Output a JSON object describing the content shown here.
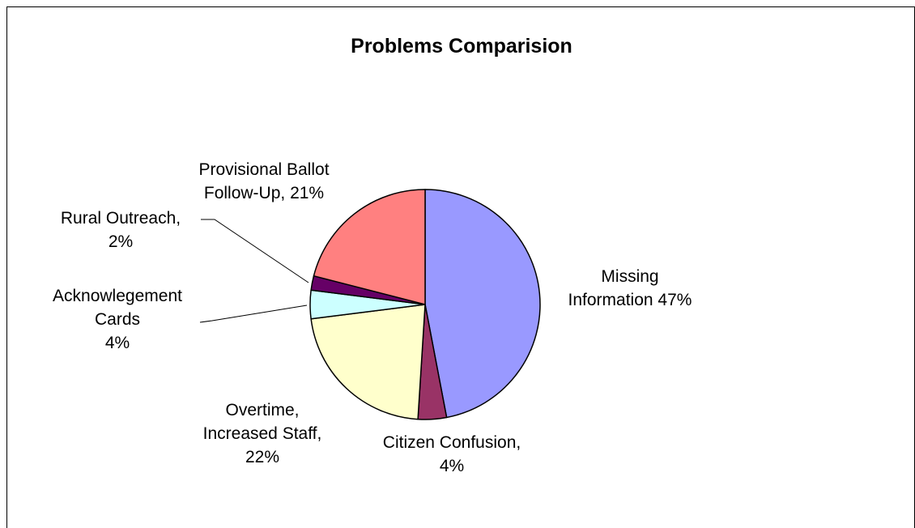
{
  "chart_data": {
    "type": "pie",
    "title": "Problems Comparision",
    "slices": [
      {
        "name": "Missing Information",
        "value": 47,
        "color": "#9999ff",
        "label_lines": [
          "Missing",
          "Information 47%"
        ]
      },
      {
        "name": "Citizen Confusion",
        "value": 4,
        "color": "#993366",
        "label_lines": [
          "Citizen Confusion,",
          "4%"
        ]
      },
      {
        "name": "Overtime, Increased Staff",
        "value": 22,
        "color": "#ffffcc",
        "label_lines": [
          "Overtime,",
          "Increased Staff,",
          "22%"
        ]
      },
      {
        "name": "Acknowlegement Cards",
        "value": 4,
        "color": "#ccffff",
        "label_lines": [
          "Acknowlegement",
          "Cards",
          "4%"
        ]
      },
      {
        "name": "Rural Outreach",
        "value": 2,
        "color": "#660066",
        "label_lines": [
          "Rural Outreach,",
          "2%"
        ]
      },
      {
        "name": "Provisional Ballot Follow-Up",
        "value": 21,
        "color": "#ff8080",
        "label_lines": [
          "Provisional Ballot",
          "Follow-Up, 21%"
        ]
      }
    ],
    "legend": "none"
  }
}
